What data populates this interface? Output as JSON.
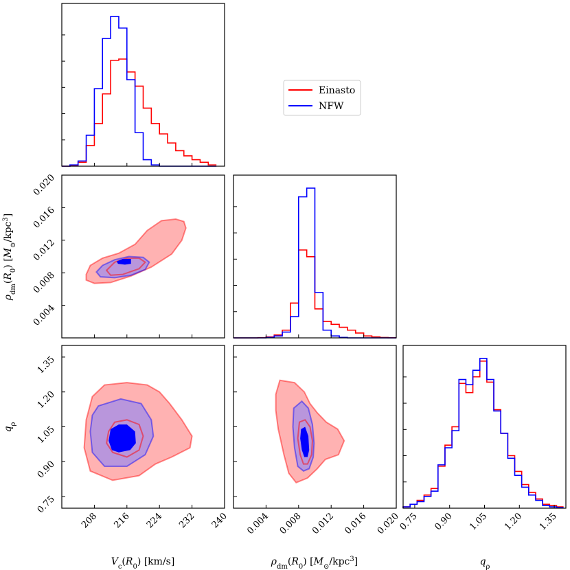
{
  "chart_data": {
    "type": "corner",
    "series": [
      {
        "name": "Einasto",
        "color": "#ff0000",
        "fill": "#ff7f7f"
      },
      {
        "name": "NFW",
        "color": "#0000ff",
        "fill": "#7f7fff"
      }
    ],
    "legend": {
      "entries": [
        "Einasto",
        "NFW"
      ],
      "position": "upper-right-empty-area"
    },
    "parameters": [
      {
        "id": "vc",
        "label": "V_c(R_0) [km/s]",
        "range": [
          200,
          240
        ],
        "ticks": [
          "208",
          "216",
          "224",
          "232",
          "240"
        ]
      },
      {
        "id": "rho",
        "label": "ρ_dm(R_0) [M_⊙/kpc³]",
        "range": [
          0.0,
          0.02
        ],
        "ticks": [
          "0.004",
          "0.008",
          "0.012",
          "0.016",
          "0.020"
        ]
      },
      {
        "id": "q",
        "label": "q_ρ",
        "range": [
          0.7,
          1.4
        ],
        "ticks": [
          "0.75",
          "0.90",
          "1.05",
          "1.20",
          "1.35"
        ]
      }
    ],
    "histograms": {
      "vc": {
        "bin_edges": [
          200,
          202,
          204,
          206,
          208,
          210,
          212,
          214,
          216,
          218,
          220,
          222,
          224,
          226,
          228,
          230,
          232,
          234,
          236,
          238,
          240
        ],
        "Einasto": [
          0,
          0.5,
          3,
          16,
          33,
          56,
          82,
          83,
          73,
          62,
          45,
          33,
          25,
          18,
          12,
          8,
          5,
          3,
          1
        ],
        "NFW": [
          0,
          1,
          4,
          24,
          60,
          99,
          116,
          107,
          67,
          26,
          5,
          1,
          0,
          0,
          0,
          0,
          0,
          0,
          0
        ]
      },
      "rho": {
        "bin_edges": [
          0,
          0.001,
          0.002,
          0.003,
          0.004,
          0.005,
          0.006,
          0.007,
          0.008,
          0.009,
          0.01,
          0.011,
          0.012,
          0.013,
          0.014,
          0.015,
          0.016,
          0.017,
          0.018,
          0.019,
          0.02
        ],
        "Einasto": [
          0,
          0,
          0,
          0.2,
          1,
          3,
          8,
          36,
          91,
          84,
          30,
          17,
          14,
          11,
          8,
          5,
          2,
          1,
          0.4,
          0.1
        ],
        "NFW": [
          0,
          0,
          0,
          0,
          0.5,
          2,
          6,
          22,
          146,
          155,
          47,
          8,
          2,
          0.5,
          0,
          0,
          0,
          0,
          0,
          0
        ]
      },
      "q": {
        "bin_edges": [
          0.7,
          0.73,
          0.76,
          0.79,
          0.82,
          0.85,
          0.88,
          0.91,
          0.94,
          0.97,
          1.0,
          1.03,
          1.06,
          1.09,
          1.12,
          1.15,
          1.18,
          1.21,
          1.24,
          1.27,
          1.3,
          1.33,
          1.36,
          1.39
        ],
        "Einasto": [
          1,
          3,
          6,
          10,
          15,
          32,
          48,
          62,
          95,
          88,
          100,
          112,
          96,
          75,
          57,
          40,
          28,
          18,
          12,
          7,
          3,
          2,
          1
        ],
        "NFW": [
          1,
          3,
          5,
          9,
          13,
          33,
          46,
          59,
          98,
          94,
          105,
          114,
          98,
          74,
          57,
          38,
          25,
          16,
          10,
          6,
          2,
          1,
          0.5
        ]
      }
    },
    "contours": {
      "rho_vs_vc": {
        "Einasto": [
          [
            [
              206.0,
              0.0078
            ],
            [
              207.0,
              0.0089
            ],
            [
              210.0,
              0.0098
            ],
            [
              214.0,
              0.0104
            ],
            [
              218.0,
              0.0115
            ],
            [
              221.0,
              0.0132
            ],
            [
              224.5,
              0.0144
            ],
            [
              228.0,
              0.0146
            ],
            [
              230.0,
              0.0143
            ],
            [
              230.5,
              0.0135
            ],
            [
              229.5,
              0.012
            ],
            [
              227.0,
              0.0103
            ],
            [
              222.0,
              0.0087
            ],
            [
              217.0,
              0.0076
            ],
            [
              212.0,
              0.0068
            ],
            [
              208.0,
              0.0067
            ],
            [
              206.0,
              0.0071
            ]
          ],
          [
            [
              211.0,
              0.0083
            ],
            [
              213.0,
              0.0093
            ],
            [
              216.0,
              0.0098
            ],
            [
              219.0,
              0.0098
            ],
            [
              220.5,
              0.0093
            ],
            [
              219.0,
              0.0085
            ],
            [
              215.0,
              0.0078
            ],
            [
              212.0,
              0.0077
            ]
          ]
        ],
        "NFW": [
          [
            [
              208.5,
              0.0081
            ],
            [
              210.0,
              0.0089
            ],
            [
              213.0,
              0.0096
            ],
            [
              216.5,
              0.01
            ],
            [
              220.0,
              0.0099
            ],
            [
              221.5,
              0.0093
            ],
            [
              220.5,
              0.0084
            ],
            [
              217.0,
              0.0077
            ],
            [
              213.0,
              0.0074
            ],
            [
              209.5,
              0.0075
            ]
          ],
          [
            [
              213.5,
              0.0094
            ],
            [
              215.0,
              0.0097
            ],
            [
              217.0,
              0.0097
            ],
            [
              217.0,
              0.0091
            ],
            [
              215.5,
              0.009
            ],
            [
              213.8,
              0.0091
            ]
          ]
        ]
      },
      "q_vs_vc": {
        "Einasto": [
          [
            [
              210.5,
              1.23
            ],
            [
              216.0,
              1.24
            ],
            [
              221.0,
              1.23
            ],
            [
              224.0,
              1.2
            ],
            [
              226.5,
              1.15
            ],
            [
              229.5,
              1.08
            ],
            [
              232.0,
              1.01
            ],
            [
              231.5,
              0.96
            ],
            [
              227.0,
              0.92
            ],
            [
              223.0,
              0.89
            ],
            [
              219.0,
              0.84
            ],
            [
              212.5,
              0.82
            ],
            [
              207.0,
              0.86
            ],
            [
              205.5,
              0.96
            ],
            [
              206.0,
              1.08
            ],
            [
              207.5,
              1.18
            ]
          ],
          [
            [
              211.5,
              1.03
            ],
            [
              213.0,
              1.07
            ],
            [
              216.0,
              1.08
            ],
            [
              219.0,
              1.06
            ],
            [
              220.0,
              1.01
            ],
            [
              219.0,
              0.95
            ],
            [
              216.0,
              0.92
            ],
            [
              212.5,
              0.94
            ],
            [
              211.0,
              0.98
            ]
          ]
        ],
        "NFW": [
          [
            [
              209.0,
              1.14
            ],
            [
              214.5,
              1.17
            ],
            [
              219.5,
              1.15
            ],
            [
              222.0,
              1.08
            ],
            [
              222.5,
              1.01
            ],
            [
              220.5,
              0.93
            ],
            [
              216.0,
              0.88
            ],
            [
              210.5,
              0.88
            ],
            [
              207.5,
              0.94
            ],
            [
              207.0,
              1.03
            ],
            [
              207.5,
              1.1
            ]
          ],
          [
            [
              212.0,
              1.04
            ],
            [
              214.0,
              1.06
            ],
            [
              216.0,
              1.06
            ],
            [
              218.0,
              1.03
            ],
            [
              218.2,
              0.98
            ],
            [
              216.8,
              0.95
            ],
            [
              214.0,
              0.94
            ],
            [
              212.3,
              0.95
            ],
            [
              211.5,
              0.99
            ]
          ]
        ]
      },
      "q_vs_rho": {
        "Einasto": [
          [
            [
              0.0057,
              1.25
            ],
            [
              0.0075,
              1.24
            ],
            [
              0.0087,
              1.2
            ],
            [
              0.0094,
              1.15
            ],
            [
              0.0103,
              1.11
            ],
            [
              0.0114,
              1.07
            ],
            [
              0.0128,
              1.04
            ],
            [
              0.0136,
              0.99
            ],
            [
              0.0129,
              0.93
            ],
            [
              0.0113,
              0.91
            ],
            [
              0.0103,
              0.87
            ],
            [
              0.0091,
              0.83
            ],
            [
              0.0077,
              0.81
            ],
            [
              0.0068,
              0.85
            ],
            [
              0.0062,
              0.93
            ],
            [
              0.0055,
              1.04
            ],
            [
              0.0052,
              1.12
            ],
            [
              0.0052,
              1.19
            ]
          ],
          [
            [
              0.0081,
              1.07
            ],
            [
              0.0088,
              1.08
            ],
            [
              0.0094,
              1.05
            ],
            [
              0.0097,
              0.99
            ],
            [
              0.0096,
              0.93
            ],
            [
              0.0091,
              0.89
            ],
            [
              0.0086,
              0.89
            ],
            [
              0.0082,
              0.93
            ],
            [
              0.0079,
              1.0
            ]
          ]
        ],
        "NFW": [
          [
            [
              0.0074,
              1.13
            ],
            [
              0.0084,
              1.16
            ],
            [
              0.0092,
              1.13
            ],
            [
              0.0097,
              1.06
            ],
            [
              0.0099,
              0.98
            ],
            [
              0.0098,
              0.92
            ],
            [
              0.0093,
              0.87
            ],
            [
              0.0086,
              0.86
            ],
            [
              0.0079,
              0.88
            ],
            [
              0.0075,
              0.96
            ],
            [
              0.0073,
              1.05
            ]
          ],
          [
            [
              0.0083,
              1.04
            ],
            [
              0.0088,
              1.05
            ],
            [
              0.0092,
              1.01
            ],
            [
              0.0093,
              0.95
            ],
            [
              0.0091,
              0.92
            ],
            [
              0.0087,
              0.92
            ],
            [
              0.0084,
              0.95
            ],
            [
              0.0082,
              1.0
            ]
          ]
        ]
      }
    }
  }
}
